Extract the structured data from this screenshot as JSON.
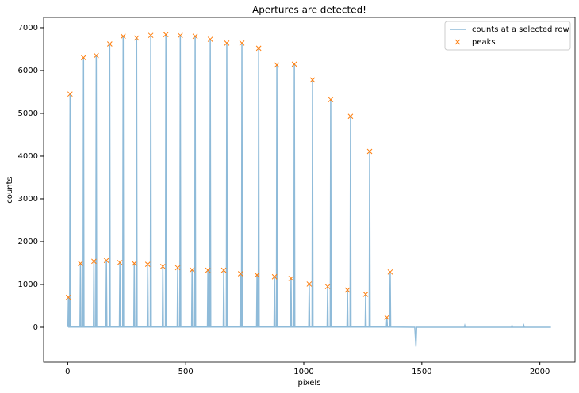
{
  "chart_data": {
    "type": "line",
    "title": "Apertures are detected!",
    "xlabel": "pixels",
    "ylabel": "counts",
    "xlim": [
      -102,
      2149
    ],
    "ylim": [
      -815,
      7240
    ],
    "xticks": [
      0,
      500,
      1000,
      1500,
      2000
    ],
    "yticks": [
      0,
      1000,
      2000,
      3000,
      4000,
      5000,
      6000,
      7000
    ],
    "legend": "upper right",
    "series": [
      {
        "name": "counts at a selected row",
        "color": "#8fbbd9",
        "line": true,
        "x": [
          1,
          3,
          5,
          8,
          10,
          12,
          52,
          54,
          56,
          65,
          67,
          69,
          109,
          111,
          113,
          119,
          121,
          123,
          162,
          164,
          166,
          176,
          178,
          180,
          219,
          221,
          223,
          233,
          235,
          237,
          280,
          282,
          284,
          290,
          292,
          294,
          337,
          339,
          341,
          350,
          352,
          354,
          401,
          403,
          405,
          414,
          416,
          418,
          464,
          466,
          468,
          475,
          477,
          479,
          525,
          527,
          529,
          538,
          540,
          542,
          592,
          594,
          596,
          602,
          604,
          606,
          659,
          661,
          663,
          672,
          674,
          676,
          730,
          732,
          734,
          736,
          738,
          740,
          800,
          802,
          804,
          807,
          809,
          811,
          874,
          876,
          878,
          884,
          886,
          888,
          944,
          946,
          948,
          958,
          960,
          962,
          1021,
          1023,
          1025,
          1035,
          1037,
          1039,
          1099,
          1101,
          1103,
          1112,
          1114,
          1116,
          1183,
          1185,
          1187,
          1196,
          1198,
          1200,
          1260,
          1262,
          1264,
          1277,
          1279,
          1281,
          1350,
          1352,
          1354,
          1364,
          1366,
          1368,
          1470,
          1475,
          1478,
          1680,
          1682,
          1684,
          1880,
          1882,
          1884,
          1930,
          1932,
          1934,
          2047
        ],
        "y": [
          5,
          700,
          5,
          5,
          5450,
          5,
          5,
          1490,
          5,
          5,
          6300,
          5,
          5,
          1540,
          5,
          5,
          6350,
          5,
          5,
          1560,
          5,
          5,
          6620,
          5,
          5,
          1510,
          5,
          5,
          6800,
          5,
          5,
          1490,
          5,
          5,
          6760,
          5,
          5,
          1470,
          5,
          5,
          6820,
          5,
          5,
          1420,
          5,
          5,
          6840,
          5,
          5,
          1390,
          5,
          5,
          6820,
          5,
          5,
          1340,
          5,
          5,
          6800,
          5,
          5,
          1330,
          5,
          5,
          6730,
          5,
          5,
          1330,
          5,
          5,
          6640,
          5,
          5,
          1250,
          5,
          5,
          6640,
          5,
          5,
          1220,
          5,
          5,
          6520,
          5,
          5,
          1180,
          5,
          5,
          6130,
          5,
          5,
          1140,
          5,
          5,
          6150,
          5,
          5,
          1010,
          5,
          5,
          5780,
          5,
          5,
          950,
          5,
          5,
          5320,
          5,
          5,
          870,
          5,
          5,
          4930,
          5,
          5,
          770,
          5,
          5,
          4110,
          5,
          5,
          230,
          5,
          5,
          1290,
          5,
          0,
          -450,
          0,
          0,
          40,
          0,
          0,
          40,
          0,
          0,
          40,
          0,
          0
        ]
      },
      {
        "name": "peaks",
        "color": "#ff7f0e",
        "line": false,
        "marker": "x",
        "x": [
          3,
          10,
          54,
          67,
          111,
          121,
          164,
          178,
          221,
          235,
          282,
          292,
          339,
          352,
          403,
          416,
          466,
          477,
          527,
          540,
          594,
          604,
          661,
          674,
          732,
          738,
          802,
          809,
          876,
          886,
          946,
          960,
          1023,
          1037,
          1101,
          1114,
          1185,
          1198,
          1262,
          1279,
          1352,
          1366
        ],
        "y": [
          700,
          5450,
          1490,
          6300,
          1540,
          6350,
          1560,
          6620,
          1510,
          6800,
          1490,
          6760,
          1470,
          6820,
          1420,
          6840,
          1390,
          6820,
          1340,
          6800,
          1330,
          6730,
          1330,
          6640,
          1250,
          6640,
          1220,
          6520,
          1180,
          6130,
          1140,
          6150,
          1010,
          5780,
          950,
          5320,
          870,
          4930,
          770,
          4110,
          230,
          1290
        ]
      }
    ]
  }
}
